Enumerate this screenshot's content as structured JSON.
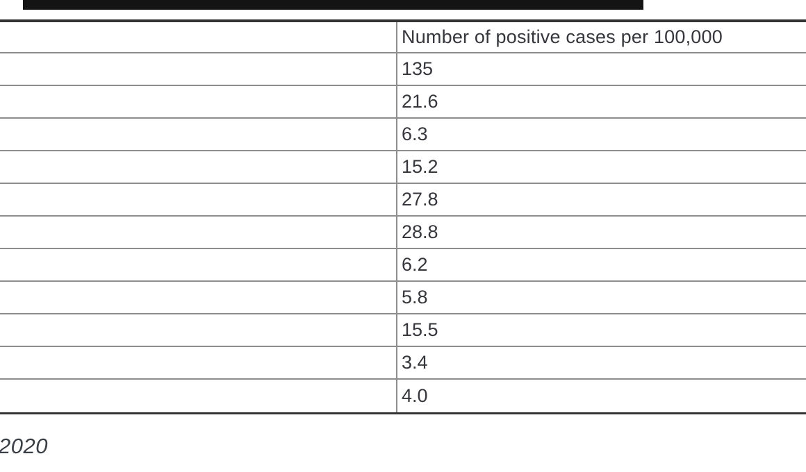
{
  "colors": {
    "background": "#ffffff",
    "top_bar": "#141414",
    "table_outer_border": "#343434",
    "grid_line": "#8d8d8d",
    "text": "#35373c"
  },
  "top_bar": {
    "description": "partial dark bar cropped at top of screenshot"
  },
  "table": {
    "columns": [
      {
        "label": ""
      },
      {
        "label": "Number of positive cases per 100,000"
      }
    ],
    "rows": [
      {
        "label": "",
        "value": "135"
      },
      {
        "label": "",
        "value": "21.6"
      },
      {
        "label": "",
        "value": "6.3"
      },
      {
        "label": "",
        "value": "15.2"
      },
      {
        "label": "",
        "value": "27.8"
      },
      {
        "label": "",
        "value": "28.8"
      },
      {
        "label": "",
        "value": "6.2"
      },
      {
        "label": "",
        "value": "5.8"
      },
      {
        "label": "",
        "value": "15.5"
      },
      {
        "label": "",
        "value": "3.4"
      },
      {
        "label": "",
        "value": "4.0"
      }
    ]
  },
  "footnote": {
    "text": "2020"
  },
  "chart_data": {
    "type": "table",
    "title": "Number of positive cases per 100,000",
    "columns": [
      "",
      "Number of positive cases per 100,000"
    ],
    "categories": [
      "",
      "",
      "",
      "",
      "",
      "",
      "",
      "",
      "",
      "",
      ""
    ],
    "values": [
      135,
      21.6,
      6.3,
      15.2,
      27.8,
      28.8,
      6.2,
      5.8,
      15.5,
      3.4,
      4.0
    ],
    "notes": "left label column is empty/cropped; italic footnote fragment reads 2020"
  }
}
